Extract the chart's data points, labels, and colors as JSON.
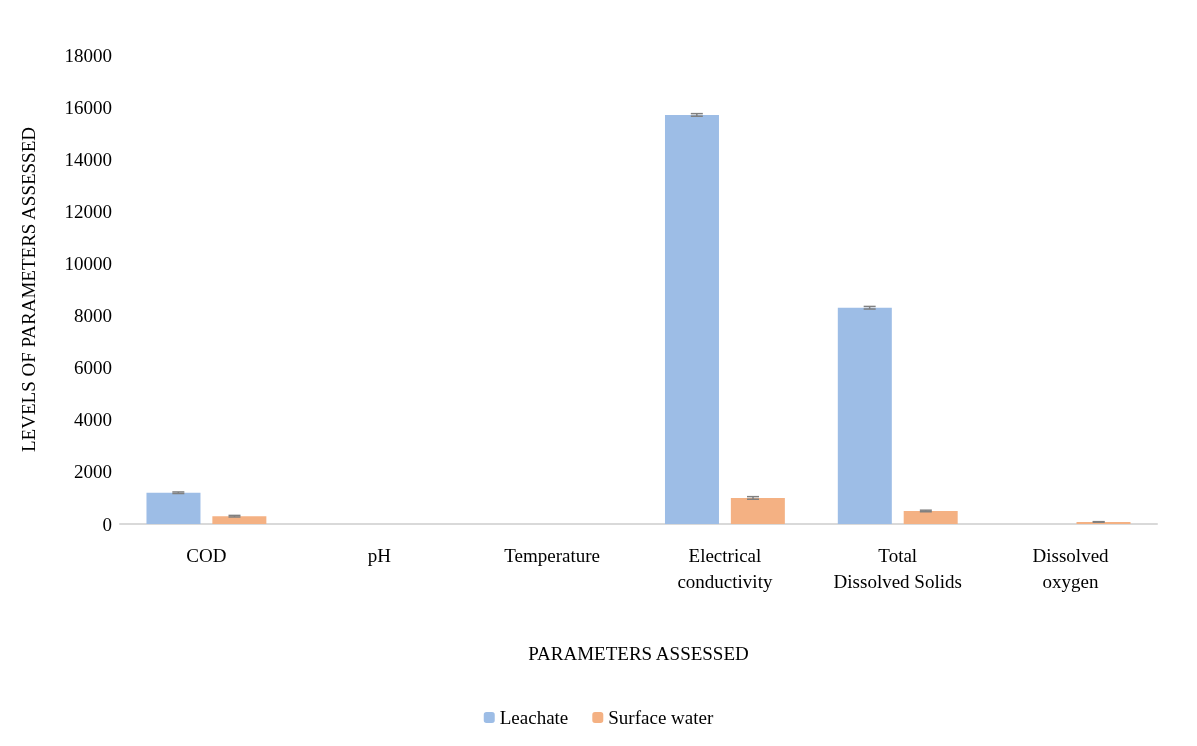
{
  "chart_data": {
    "type": "bar",
    "xlabel": "PARAMETERS ASSESSED",
    "ylabel": "LEVELS OF PARAMETERS ASSESSED",
    "categories": [
      "COD",
      "pH",
      "Temperature",
      "Electrical conductivity",
      "Total Dissolved Solids",
      "Dissolved oxygen"
    ],
    "series": [
      {
        "name": "Leachate",
        "color": "#9dbde6",
        "values": [
          1200,
          0,
          0,
          15700,
          8300,
          null
        ],
        "errors": [
          30,
          null,
          null,
          50,
          50,
          null
        ]
      },
      {
        "name": "Surface water",
        "color": "#f4b183",
        "values": [
          300,
          0,
          0,
          1000,
          500,
          80
        ],
        "errors": [
          30,
          null,
          null,
          50,
          30,
          10
        ]
      }
    ],
    "ylim": [
      0,
      18000
    ],
    "yticks": [
      0,
      2000,
      4000,
      6000,
      8000,
      10000,
      12000,
      14000,
      16000,
      18000
    ],
    "grid": false,
    "legend": "bottom"
  }
}
